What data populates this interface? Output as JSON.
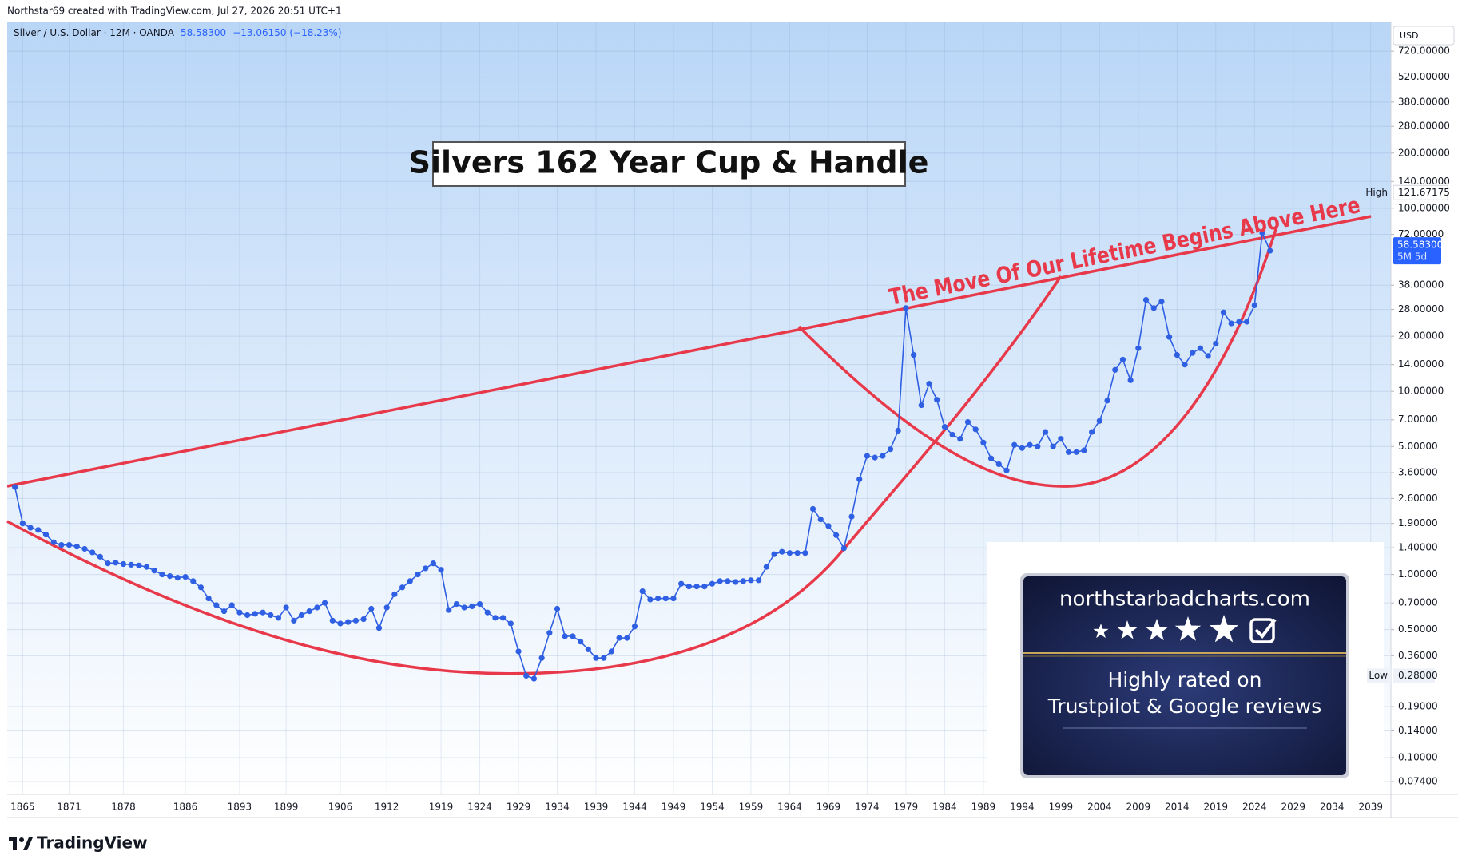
{
  "header": "Northstar69 created with TradingView.com, Jul 27, 2026 20:51 UTC+1",
  "footer": "TradingView",
  "currency": "USD",
  "legend": {
    "symbol": "Silver / U.S. Dollar · 12M · OANDA",
    "change": "−13.06150 (−18.23%)"
  },
  "promo": {
    "site": "northstarbadcharts.com",
    "line1": "Highly rated on",
    "line2": "Trustpilot & Google reviews"
  },
  "chart_data": {
    "type": "line",
    "title": "Silvers 162 Year Cup & Handle",
    "annotation": "The Move Of Our Lifetime Begins Above Here",
    "color": "#2f5fe3",
    "log_scale": true,
    "grid": true,
    "x": [
      1864,
      1865,
      1866,
      1867,
      1868,
      1869,
      1870,
      1871,
      1872,
      1873,
      1874,
      1875,
      1876,
      1877,
      1878,
      1879,
      1880,
      1881,
      1882,
      1883,
      1884,
      1885,
      1886,
      1887,
      1888,
      1889,
      1890,
      1891,
      1892,
      1893,
      1894,
      1895,
      1896,
      1897,
      1898,
      1899,
      1900,
      1901,
      1902,
      1903,
      1904,
      1905,
      1906,
      1907,
      1908,
      1909,
      1910,
      1911,
      1912,
      1913,
      1914,
      1915,
      1916,
      1917,
      1918,
      1919,
      1920,
      1921,
      1922,
      1923,
      1924,
      1925,
      1926,
      1927,
      1928,
      1929,
      1930,
      1931,
      1932,
      1933,
      1934,
      1935,
      1936,
      1937,
      1938,
      1939,
      1940,
      1941,
      1942,
      1943,
      1944,
      1945,
      1946,
      1947,
      1948,
      1949,
      1950,
      1951,
      1952,
      1953,
      1954,
      1955,
      1956,
      1957,
      1958,
      1959,
      1960,
      1961,
      1962,
      1963,
      1964,
      1965,
      1966,
      1967,
      1968,
      1969,
      1970,
      1971,
      1972,
      1973,
      1974,
      1975,
      1976,
      1977,
      1978,
      1979,
      1980,
      1981,
      1982,
      1983,
      1984,
      1985,
      1986,
      1987,
      1988,
      1989,
      1990,
      1991,
      1992,
      1993,
      1994,
      1995,
      1996,
      1997,
      1998,
      1999,
      2000,
      2001,
      2002,
      2003,
      2004,
      2005,
      2006,
      2007,
      2008,
      2009,
      2010,
      2011,
      2012,
      2013,
      2014,
      2015,
      2016,
      2017,
      2018,
      2019,
      2020,
      2021,
      2022,
      2023,
      2024,
      2025,
      2026
    ],
    "values": [
      3.0,
      1.9,
      1.8,
      1.75,
      1.65,
      1.5,
      1.45,
      1.45,
      1.42,
      1.38,
      1.32,
      1.25,
      1.15,
      1.16,
      1.14,
      1.13,
      1.12,
      1.1,
      1.05,
      1.0,
      0.98,
      0.96,
      0.97,
      0.92,
      0.85,
      0.74,
      0.68,
      0.63,
      0.68,
      0.62,
      0.6,
      0.61,
      0.62,
      0.6,
      0.58,
      0.66,
      0.56,
      0.6,
      0.63,
      0.66,
      0.7,
      0.56,
      0.54,
      0.55,
      0.56,
      0.57,
      0.65,
      0.51,
      0.66,
      0.78,
      0.85,
      0.92,
      1.0,
      1.08,
      1.15,
      1.06,
      0.64,
      0.69,
      0.66,
      0.67,
      0.69,
      0.62,
      0.58,
      0.58,
      0.54,
      0.38,
      0.28,
      0.27,
      0.35,
      0.48,
      0.65,
      0.46,
      0.46,
      0.43,
      0.39,
      0.35,
      0.35,
      0.38,
      0.45,
      0.45,
      0.52,
      0.81,
      0.73,
      0.74,
      0.74,
      0.74,
      0.89,
      0.86,
      0.86,
      0.86,
      0.89,
      0.92,
      0.92,
      0.91,
      0.92,
      0.93,
      0.93,
      1.1,
      1.29,
      1.33,
      1.31,
      1.31,
      1.31,
      2.28,
      2.0,
      1.84,
      1.64,
      1.39,
      2.07,
      3.31,
      4.44,
      4.35,
      4.44,
      4.83,
      6.1,
      28.5,
      15.8,
      8.4,
      11,
      9.0,
      6.4,
      5.8,
      5.5,
      6.8,
      6.2,
      5.25,
      4.3,
      4.0,
      3.7,
      5.1,
      4.9,
      5.1,
      5.0,
      6.0,
      5.0,
      5.5,
      4.66,
      4.66,
      4.76,
      6.0,
      6.9,
      8.9,
      13.1,
      14.9,
      11.5,
      17.2,
      31.6,
      28.5,
      30.9,
      19.8,
      15.8,
      14,
      16.2,
      17.2,
      15.6,
      18.2,
      27,
      23.5,
      24,
      24,
      29.5,
      73.5,
      58.583
    ],
    "xlim": [
      1863,
      2041.5
    ],
    "xticks": [
      1865,
      1871,
      1878,
      1886,
      1893,
      1899,
      1906,
      1912,
      1919,
      1924,
      1929,
      1934,
      1939,
      1944,
      1949,
      1954,
      1959,
      1964,
      1969,
      1974,
      1979,
      1984,
      1989,
      1994,
      1999,
      2004,
      2009,
      2014,
      2019,
      2024,
      2029,
      2034,
      2039
    ],
    "ylim": [
      0.063,
      1035
    ],
    "yticks": [
      {
        "value": 720,
        "label": "720.00000"
      },
      {
        "value": 520,
        "label": "520.00000"
      },
      {
        "value": 380,
        "label": "380.00000"
      },
      {
        "value": 280,
        "label": "280.00000"
      },
      {
        "value": 200,
        "label": "200.00000"
      },
      {
        "value": 140,
        "label": "140.00000"
      },
      {
        "value": 100,
        "label": "100.00000"
      },
      {
        "value": 72,
        "label": "72.00000"
      },
      {
        "value": 38,
        "label": "38.00000"
      },
      {
        "value": 28,
        "label": "28.00000"
      },
      {
        "value": 20,
        "label": "20.00000"
      },
      {
        "value": 14,
        "label": "14.00000"
      },
      {
        "value": 10,
        "label": "10.00000"
      },
      {
        "value": 7,
        "label": "7.00000"
      },
      {
        "value": 5,
        "label": "5.00000"
      },
      {
        "value": 3.6,
        "label": "3.60000"
      },
      {
        "value": 2.6,
        "label": "2.60000"
      },
      {
        "value": 1.9,
        "label": "1.90000"
      },
      {
        "value": 1.4,
        "label": "1.40000"
      },
      {
        "value": 1,
        "label": "1.00000"
      },
      {
        "value": 0.7,
        "label": "0.70000"
      },
      {
        "value": 0.5,
        "label": "0.50000"
      },
      {
        "value": 0.36,
        "label": "0.36000"
      },
      {
        "value": 0.19,
        "label": "0.19000"
      },
      {
        "value": 0.14,
        "label": "0.14000"
      },
      {
        "value": 0.1,
        "label": "0.10000"
      },
      {
        "value": 0.074,
        "label": "0.07400"
      }
    ],
    "last_price": {
      "value": 58.583,
      "label": "58.58300",
      "countdown": "5M 5d"
    },
    "high": {
      "text": "High",
      "value": 121.67175,
      "label": "121.67175"
    },
    "low": {
      "text": "Low",
      "value": 0.28,
      "label": "0.28000"
    }
  }
}
